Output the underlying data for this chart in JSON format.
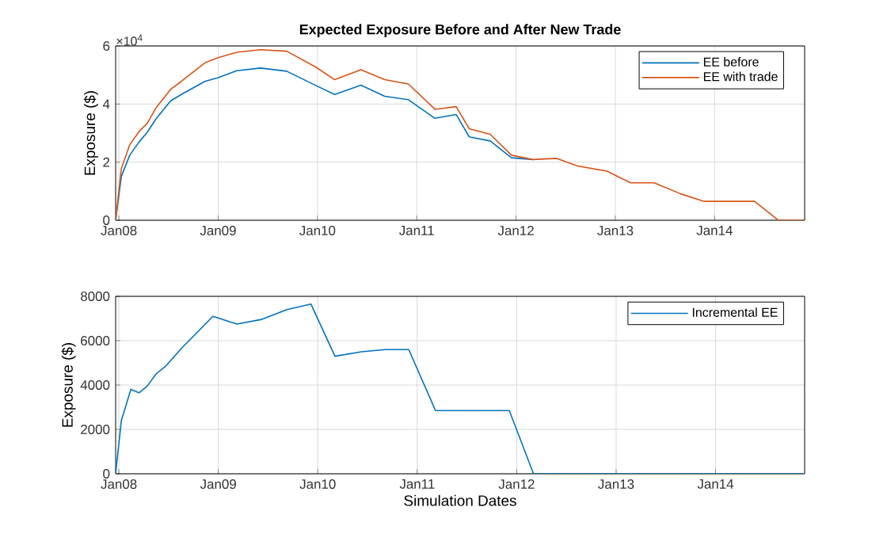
{
  "chart_data": [
    {
      "type": "line",
      "title": "Expected Exposure Before and After New Trade",
      "ylabel": "Exposure ($)",
      "annotations": [
        "×10$^{4}$"
      ],
      "x": [
        "2007-12-20",
        "2008-01-10",
        "2008-02-10",
        "2008-03-15",
        "2008-04-14",
        "2008-05-17",
        "2008-07-10",
        "2008-08-18",
        "2008-11-13",
        "2009-01-01",
        "2009-03-10",
        "2009-06-06",
        "2009-09-10",
        "2009-12-26",
        "2010-03-05",
        "2010-06-10",
        "2010-09-05",
        "2010-12-01",
        "2011-03-09",
        "2011-05-26",
        "2011-07-13",
        "2011-09-28",
        "2011-12-15",
        "2012-03-03",
        "2012-05-30",
        "2012-08-15",
        "2012-12-01",
        "2013-02-26",
        "2013-05-24",
        "2013-08-29",
        "2013-11-24",
        "2014-05-28",
        "2014-08-23",
        "2014-11-24"
      ],
      "series": [
        {
          "name": "EE before",
          "color": "#0072bd",
          "values": [
            0,
            1.51,
            2.24,
            2.69,
            3.02,
            3.49,
            4.11,
            4.33,
            4.78,
            4.91,
            5.15,
            5.24,
            5.13,
            4.64,
            4.33,
            4.65,
            4.27,
            4.15,
            3.51,
            3.64,
            2.87,
            2.73,
            2.15,
            2.09,
            null,
            null,
            null,
            null,
            null,
            null,
            null,
            null,
            null,
            null
          ]
        },
        {
          "name": "EE with trade",
          "color": "#d95319",
          "values": [
            0,
            1.78,
            2.6,
            3.05,
            3.33,
            3.87,
            4.51,
            4.78,
            5.42,
            5.6,
            5.78,
            5.87,
            5.82,
            5.27,
            4.84,
            5.18,
            4.84,
            4.69,
            3.82,
            3.91,
            3.15,
            2.96,
            2.24,
            2.09,
            2.13,
            1.87,
            1.69,
            1.29,
            1.29,
            0.91,
            0.65,
            0.65,
            0,
            0
          ]
        }
      ],
      "xlim": [
        "2007-12-20",
        "2014-11-28"
      ],
      "xticks": [
        {
          "value": "2008-01-01",
          "label": "Jan08"
        },
        {
          "value": "2009-01-01",
          "label": "Jan09"
        },
        {
          "value": "2010-01-01",
          "label": "Jan10"
        },
        {
          "value": "2011-01-01",
          "label": "Jan11"
        },
        {
          "value": "2012-01-01",
          "label": "Jan12"
        },
        {
          "value": "2013-01-01",
          "label": "Jan13"
        },
        {
          "value": "2014-01-01",
          "label": "Jan14"
        }
      ],
      "ylim": [
        0,
        6
      ],
      "yticks": [
        0,
        2,
        4,
        6
      ],
      "grid": true,
      "legend": "top right"
    },
    {
      "type": "line",
      "xlabel": "Simulation Dates",
      "ylabel": "Exposure ($)",
      "x": [
        "2007-12-20",
        "2008-01-10",
        "2008-02-14",
        "2008-03-15",
        "2008-04-14",
        "2008-05-17",
        "2008-06-21",
        "2008-08-18",
        "2008-12-12",
        "2009-03-10",
        "2009-06-06",
        "2009-09-10",
        "2009-12-07",
        "2010-03-05",
        "2010-06-10",
        "2010-09-05",
        "2010-12-01",
        "2011-03-09",
        "2011-05-26",
        "2011-12-05",
        "2012-03-03",
        "2014-11-24"
      ],
      "series": [
        {
          "name": "Incremental EE",
          "color": "#0072bd",
          "values": [
            0,
            2400,
            3800,
            3650,
            3950,
            4500,
            4850,
            5650,
            7100,
            6750,
            6950,
            7400,
            7650,
            5300,
            5500,
            5600,
            5600,
            2850,
            2850,
            2850,
            0,
            0
          ]
        }
      ],
      "xlim": [
        "2007-12-20",
        "2014-11-24"
      ],
      "xticks": [
        {
          "value": "2008-01-01",
          "label": "Jan08"
        },
        {
          "value": "2009-01-01",
          "label": "Jan09"
        },
        {
          "value": "2010-01-01",
          "label": "Jan10"
        },
        {
          "value": "2011-01-01",
          "label": "Jan11"
        },
        {
          "value": "2012-01-01",
          "label": "Jan12"
        },
        {
          "value": "2013-01-01",
          "label": "Jan13"
        },
        {
          "value": "2014-01-01",
          "label": "Jan14"
        }
      ],
      "ylim": [
        0,
        8000
      ],
      "yticks": [
        0,
        2000,
        4000,
        6000,
        8000
      ],
      "grid": true,
      "legend": "top right"
    }
  ]
}
